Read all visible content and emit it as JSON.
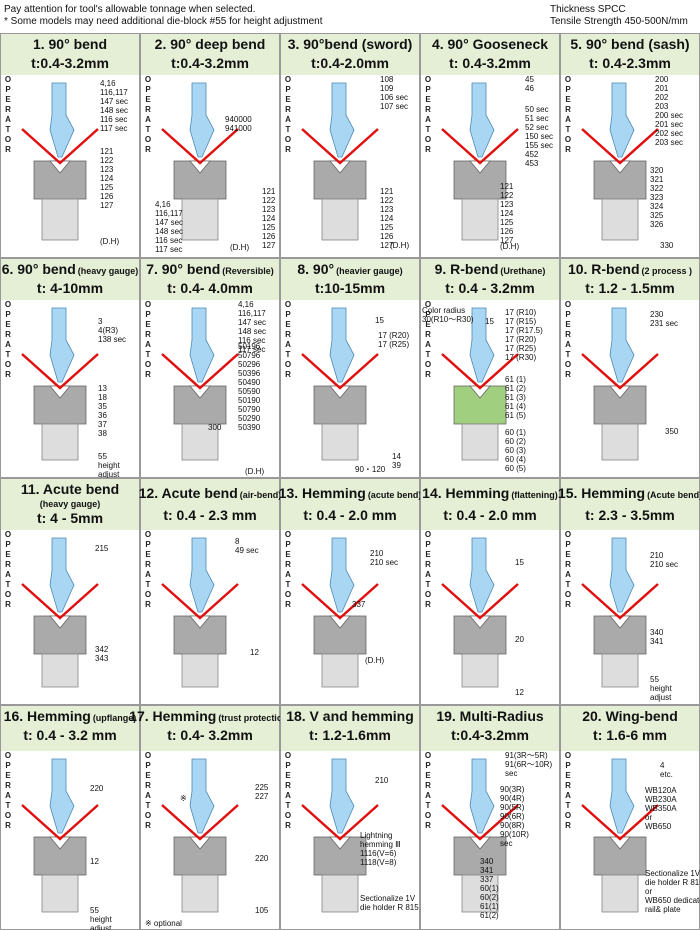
{
  "header": {
    "left": [
      "Pay attention for tool's allowable tonnage when selected.",
      "* Some models may need additional die-block #55 for height adjustment"
    ],
    "right": [
      "Thickness SPCC",
      "Tensile Strength 450-500N/mm"
    ]
  },
  "operator": "OPERATOR",
  "cells": [
    {
      "title": "1.  90° bend",
      "thickness": "t:0.4-3.2mm",
      "labels": [
        [
          "4,16",
          "116,117",
          "147 sec",
          "148 sec",
          "116 sec",
          "117 sec"
        ],
        [
          "121",
          "122",
          "123",
          "124",
          "125",
          "126",
          "127"
        ],
        [
          "(D.H)"
        ]
      ]
    },
    {
      "title": "2.  90° deep bend",
      "thickness": "t:0.4-3.2mm",
      "labels": [
        [
          "940000",
          "941000"
        ],
        [
          "4,16",
          "116,117",
          "147 sec",
          "148 sec",
          "116 sec",
          "117 sec"
        ],
        [
          "121",
          "122",
          "123",
          "124",
          "125",
          "126",
          "127"
        ],
        [
          "(D.H)"
        ]
      ]
    },
    {
      "title": "3.  90°bend (sword)",
      "thickness": "t:0.4-2.0mm",
      "labels": [
        [
          "108",
          "109",
          "106 sec",
          "107 sec"
        ],
        [
          "121",
          "122",
          "123",
          "124",
          "125",
          "126",
          "127"
        ],
        [
          "(D.H)"
        ]
      ]
    },
    {
      "title": "4.  90° Gooseneck",
      "thickness": "t: 0.4-3.2mm",
      "labels": [
        [
          "45",
          "46"
        ],
        [
          "50 sec",
          "51 sec",
          "52 sec",
          "150 sec",
          "155 sec",
          "452",
          "453"
        ],
        [
          "121",
          "122",
          "123",
          "124",
          "125",
          "126",
          "127"
        ],
        [
          "(D.H)"
        ]
      ]
    },
    {
      "title": "5.  90° bend (sash)",
      "thickness": "t: 0.4-2.3mm",
      "labels": [
        [
          "200",
          "201",
          "202",
          "203",
          "200 sec",
          "201 sec",
          "202 sec",
          "203 sec"
        ],
        [
          "320",
          "321",
          "322",
          "323",
          "324",
          "325",
          "326"
        ],
        [
          "330"
        ]
      ]
    },
    {
      "title": "6. 90° bend",
      "note": "(heavy gauge)",
      "thickness": "t: 4-10mm",
      "labels": [
        [
          "3",
          "4(R3)",
          "138 sec"
        ],
        [
          "13",
          "18",
          "35",
          "36",
          "37",
          "38"
        ],
        [
          "55",
          "height",
          "adjust"
        ]
      ]
    },
    {
      "title": "7. 90° bend",
      "note": "(Reversible)",
      "thickness": "t: 0.4- 4.0mm",
      "labels": [
        [
          "4,16",
          "116,117",
          "147 sec",
          "148 sec",
          "116 sec",
          "117 sec"
        ],
        [
          "50196",
          "50796",
          "50296",
          "50396",
          "50490",
          "50590",
          "50190",
          "50790",
          "50290",
          "50390"
        ],
        [
          "300"
        ],
        [
          "(D.H)"
        ]
      ]
    },
    {
      "title": "8. 90°",
      "note": "(heavier gauge)",
      "thickness": "t:10-15mm",
      "labels": [
        [
          "15"
        ],
        [
          "17 (R20)",
          "17 (R25)"
        ],
        [
          "14",
          "39"
        ],
        [
          "90・120"
        ]
      ]
    },
    {
      "title": "9. R-bend",
      "note": "(Urethane)",
      "thickness": "t: 0.4 - 3.2mm",
      "labels": [
        [
          "Color radius",
          "30(R10〜R30)"
        ],
        [
          "15"
        ],
        [
          "17 (R10)",
          "17 (R15)",
          "17 (R17.5)",
          "17 (R20)",
          "17 (R25)",
          "17 (R30)"
        ],
        [
          "61 (1)",
          "61 (2)",
          "61 (3)",
          "61 (4)",
          "61 (5)"
        ],
        [
          "60 (1)",
          "60 (2)",
          "60 (3)",
          "60 (4)",
          "60 (5)"
        ]
      ]
    },
    {
      "title": "10. R-bend",
      "note": "(2 process )",
      "thickness": "t: 1.2 - 1.5mm",
      "labels": [
        [
          "230",
          "231 sec"
        ],
        [
          "350"
        ]
      ]
    },
    {
      "title": "11. Acute bend",
      "note": "(heavy gauge)",
      "thickness": "t: 4 - 5mm",
      "labels": [
        [
          "215"
        ],
        [
          "342",
          "343"
        ]
      ]
    },
    {
      "title": "12. Acute bend",
      "note": "(air-bend)",
      "thickness": "t: 0.4 - 2.3 mm",
      "labels": [
        [
          "8",
          "49 sec"
        ],
        [
          "12"
        ]
      ]
    },
    {
      "title": "13. Hemming",
      "note": "(acute bend)",
      "thickness": "t: 0.4 - 2.0 mm",
      "labels": [
        [
          "210",
          "210 sec"
        ],
        [
          "337"
        ],
        [
          "(D.H)"
        ]
      ]
    },
    {
      "title": "14. Hemming",
      "note": "(flattening)",
      "thickness": "t: 0.4 - 2.0 mm",
      "labels": [
        [
          "15"
        ],
        [
          "20"
        ],
        [
          "12"
        ]
      ]
    },
    {
      "title": "15. Hemming",
      "note": "(Acute bend)",
      "thickness": "t: 2.3 - 3.5mm",
      "labels": [
        [
          "210",
          "210 sec"
        ],
        [
          "340",
          "341"
        ],
        [
          "55",
          "height",
          "adjust"
        ]
      ]
    },
    {
      "title": "16. Hemming",
      "note": "(upflange)",
      "thickness": "t: 0.4 - 3.2 mm",
      "labels": [
        [
          "220"
        ],
        [
          "12"
        ],
        [
          "55",
          "height",
          "adjust"
        ]
      ]
    },
    {
      "title": "17. Hemming",
      "note": "(trust protection)",
      "thickness": "t: 0.4- 3.2mm",
      "labels": [
        [
          "225",
          "227"
        ],
        [
          "※"
        ],
        [
          "220"
        ],
        [
          "105"
        ],
        [
          "※ optional"
        ]
      ]
    },
    {
      "title": "18. V and hemming",
      "thickness": "t: 1.2-1.6mm",
      "labels": [
        [
          "210"
        ],
        [
          "Lightning",
          "hemming Ⅲ",
          "1116(V=6)",
          "1118(V=8)"
        ],
        [
          "Sectionalize 1V",
          "die holder R 815"
        ]
      ]
    },
    {
      "title": "19. Multi-Radius",
      "thickness": "t:0.4-3.2mm",
      "labels": [
        [
          "91(3R〜5R)",
          "91(6R〜10R)",
          "sec"
        ],
        [
          "90(3R)",
          "90(4R)",
          "90(5R)",
          "90(6R)",
          "90(8R)",
          "90(10R)",
          "sec"
        ],
        [
          "340",
          "341",
          "337",
          "60(1)",
          "60(2)",
          "61(1)",
          "61(2)"
        ]
      ]
    },
    {
      "title": "20. Wing-bend",
      "thickness": "t: 1.6-6 mm",
      "labels": [
        [
          "4",
          "etc."
        ],
        [
          "WB120A",
          "WB230A",
          "WB350A",
          "or",
          "WB650"
        ],
        [
          "Sectionalize 1V",
          "die holder R 815",
          "or",
          "WB650 dedicated",
          "rail& plate"
        ]
      ]
    }
  ]
}
